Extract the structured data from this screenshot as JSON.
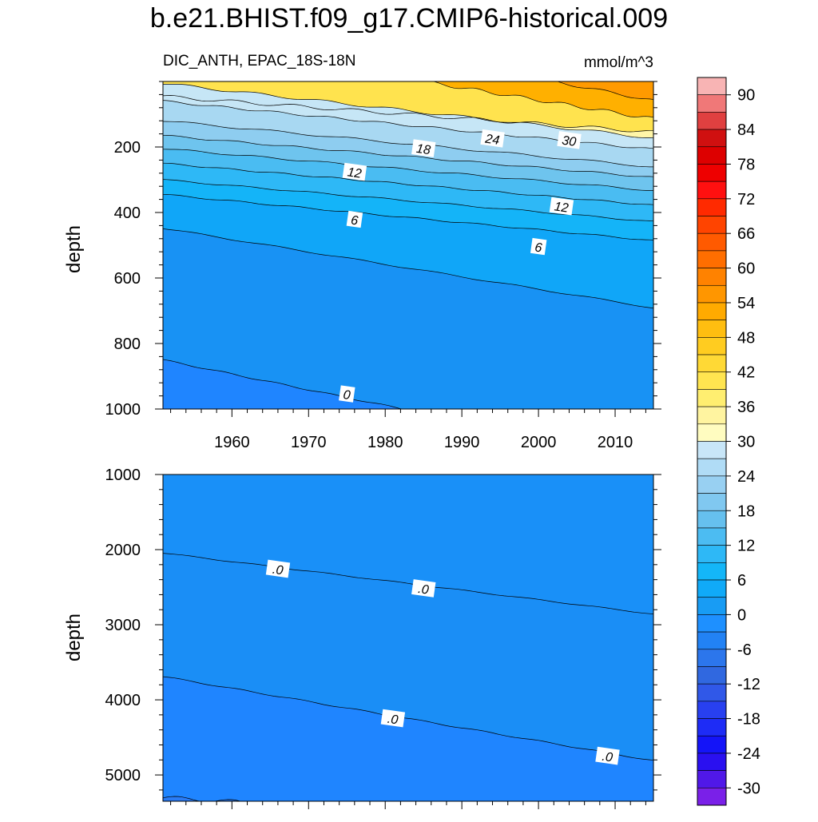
{
  "chart_data": {
    "type": "heatmap",
    "title": "b.e21.BHIST.f09_g17.CMIP6-historical.009",
    "subtitle_left": "DIC_ANTH, EPAC_18S-18N",
    "units": "mmol/m^3",
    "x": {
      "label": "",
      "range": [
        1951,
        2015
      ],
      "ticks": [
        1960,
        1970,
        1980,
        1990,
        2000,
        2010
      ]
    },
    "panels": [
      {
        "name": "upper",
        "ylabel": "depth",
        "yrange": [
          0,
          1000
        ],
        "yticks": [
          200,
          400,
          600,
          800,
          1000
        ],
        "contour_labels": [
          {
            "text": "24",
            "x": 1994,
            "y": 175
          },
          {
            "text": "30",
            "x": 2004,
            "y": 180
          },
          {
            "text": "18",
            "x": 1985,
            "y": 205
          },
          {
            "text": "12",
            "x": 1976,
            "y": 277
          },
          {
            "text": "12",
            "x": 2003,
            "y": 382
          },
          {
            "text": "6",
            "x": 1976,
            "y": 422
          },
          {
            "text": "6",
            "x": 2000,
            "y": 505
          },
          {
            "text": "0",
            "x": 1975,
            "y": 955
          }
        ]
      },
      {
        "name": "lower",
        "ylabel": "depth",
        "yrange": [
          1000,
          5350
        ],
        "yticks": [
          1000,
          2000,
          3000,
          4000,
          5000
        ],
        "contour_labels": [
          {
            "text": ".0",
            "x": 1966,
            "y": 2260
          },
          {
            "text": ".0",
            "x": 1985,
            "y": 2520
          },
          {
            "text": ".0",
            "x": 1981,
            "y": 4250
          },
          {
            "text": ".0",
            "x": 2009,
            "y": 4750
          }
        ]
      }
    ],
    "colorbar": {
      "label_values": [
        "90",
        "84",
        "78",
        "72",
        "66",
        "60",
        "54",
        "48",
        "42",
        "36",
        "30",
        "24",
        "18",
        "12",
        "6",
        "0",
        "-6",
        "-12",
        "-18",
        "-24",
        "-30"
      ],
      "colors": [
        "#F8B4B4",
        "#F07878",
        "#E04040",
        "#D01010",
        "#DD0000",
        "#EE0000",
        "#FF1010",
        "#FF2A00",
        "#FF4400",
        "#FF5A00",
        "#FF6E00",
        "#FF8200",
        "#FF9600",
        "#FFAA00",
        "#FFBE10",
        "#FFCC20",
        "#FFD935",
        "#FFE550",
        "#FFEE70",
        "#FFF4A0",
        "#FFFCC0",
        "#C8E6F8",
        "#B0DCF6",
        "#98D0F2",
        "#80C8F0",
        "#66C0EE",
        "#4CBCF2",
        "#2EB8F6",
        "#14B6F8",
        "#10AAF8",
        "#189CF4",
        "#1E90FF",
        "#2282F4",
        "#2C76EC",
        "#3068E0",
        "#3058E8",
        "#2840F0",
        "#1E2CF6",
        "#1414F8",
        "#2A10F0",
        "#5018E8",
        "#7A20E8"
      ]
    }
  }
}
